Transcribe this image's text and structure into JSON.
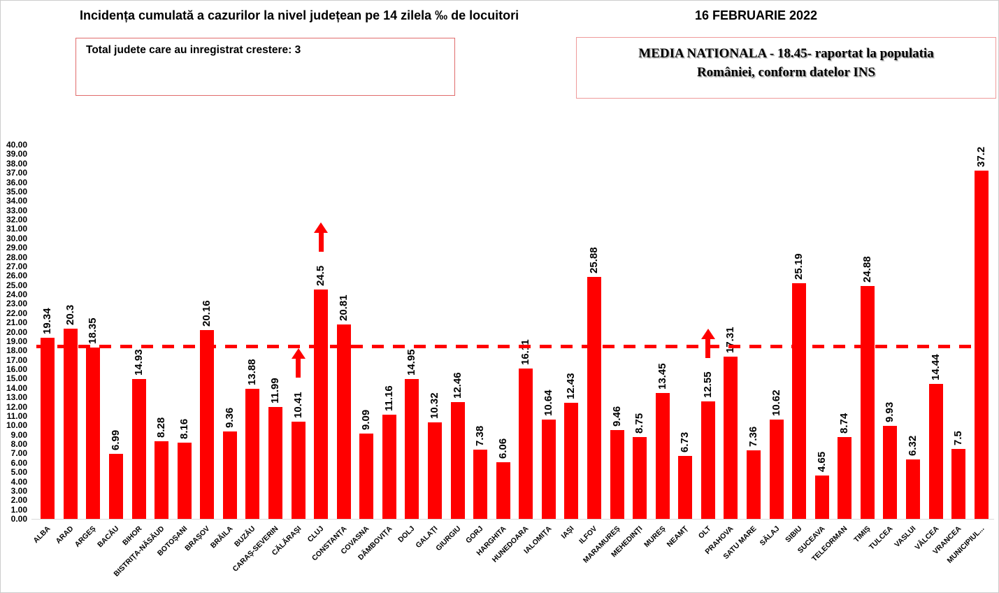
{
  "header": {
    "title": "Incidența cumulată a cazurilor la nivel județean pe 14 zilela ‰ de locuitori",
    "date": "16 FEBRUARIE 2022"
  },
  "boxes": {
    "total_increase": "Total judete care au inregistrat crestere: 3",
    "national_average_line1": "MEDIA NATIONALA - 18.45-  raportat la populatia",
    "national_average_line2": "României, conform datelor INS"
  },
  "chart_data": {
    "type": "bar",
    "title": "Incidența cumulată a cazurilor la nivel județean pe 14 zilela ‰ de locuitori",
    "xlabel": "",
    "ylabel": "",
    "ylim": [
      0,
      40
    ],
    "ytick_step": 1,
    "grid": "off",
    "legend": "none",
    "bar_color": "#FF0000",
    "average_line_color": "#FF0000",
    "arrow_color": "#FF0000",
    "national_average": 18.45,
    "counties_with_increase": [
      "CĂLĂRAȘI",
      "CLUJ",
      "OLT"
    ],
    "categories": [
      "ALBA",
      "ARAD",
      "ARGEȘ",
      "BACĂU",
      "BIHOR",
      "BISTRIȚA-NĂSĂUD",
      "BOTOȘANI",
      "BRAȘOV",
      "BRĂILA",
      "BUZĂU",
      "CARAȘ-SEVERIN",
      "CĂLĂRAȘI",
      "CLUJ",
      "CONSTANȚA",
      "COVASNA",
      "DÂMBOVIȚA",
      "DOLJ",
      "GALAȚI",
      "GIURGIU",
      "GORJ",
      "HARGHITA",
      "HUNEDOARA",
      "IALOMIȚA",
      "IAȘI",
      "ILFOV",
      "MARAMUREȘ",
      "MEHEDINȚI",
      "MUREȘ",
      "NEAMȚ",
      "OLT",
      "PRAHOVA",
      "SATU MARE",
      "SĂLAJ",
      "SIBIU",
      "SUCEAVA",
      "TELEORMAN",
      "TIMIȘ",
      "TULCEA",
      "VASLUI",
      "VÂLCEA",
      "VRANCEA",
      "MUNICIPIUL..."
    ],
    "values": [
      19.34,
      20.3,
      18.35,
      6.99,
      14.93,
      8.28,
      8.16,
      20.16,
      9.36,
      13.88,
      11.99,
      10.41,
      24.5,
      20.81,
      9.09,
      11.16,
      14.95,
      10.32,
      12.46,
      7.38,
      6.06,
      16.11,
      10.64,
      12.43,
      25.88,
      9.46,
      8.75,
      13.45,
      6.73,
      12.55,
      17.31,
      7.36,
      10.62,
      25.19,
      4.65,
      8.74,
      24.88,
      9.93,
      6.32,
      14.44,
      7.5,
      37.2
    ]
  }
}
